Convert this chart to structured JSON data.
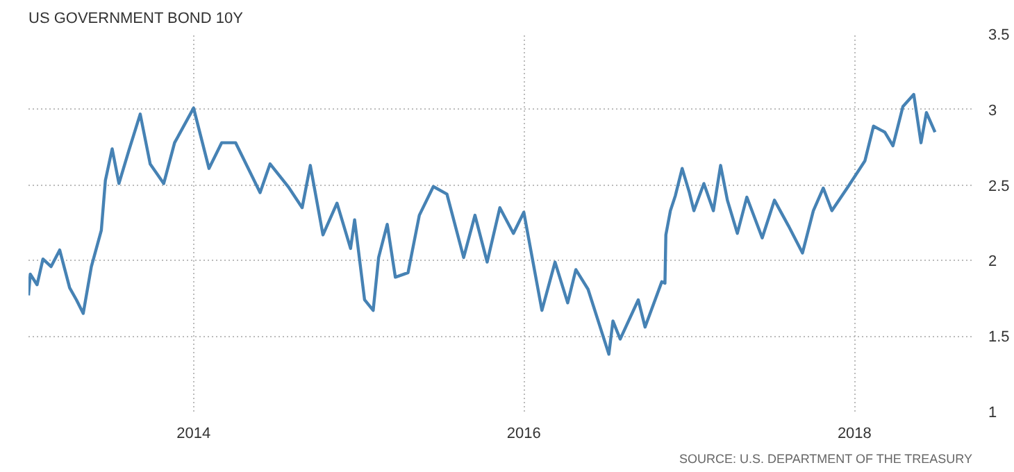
{
  "chart_data": {
    "type": "line",
    "title": "US GOVERNMENT BOND 10Y",
    "annotations": [
      "SOURCE: U.S. DEPARTMENT OF THE TREASURY"
    ],
    "x": [
      "2013-01-01",
      "2013-01-05",
      "2013-01-20",
      "2013-02-02",
      "2013-02-20",
      "2013-03-11",
      "2013-04-02",
      "2013-04-17",
      "2013-05-02",
      "2013-05-20",
      "2013-06-11",
      "2013-06-20",
      "2013-07-05",
      "2013-07-20",
      "2013-08-11",
      "2013-09-05",
      "2013-09-27",
      "2013-10-27",
      "2013-11-20",
      "2014-01-01",
      "2014-02-04",
      "2014-03-04",
      "2014-04-04",
      "2014-05-28",
      "2014-06-19",
      "2014-07-29",
      "2014-08-29",
      "2014-09-16",
      "2014-10-14",
      "2014-11-14",
      "2014-12-14",
      "2014-12-23",
      "2015-01-14",
      "2015-02-02",
      "2015-02-14",
      "2015-03-05",
      "2015-03-23",
      "2015-04-20",
      "2015-05-15",
      "2015-06-15",
      "2015-07-15",
      "2015-08-21",
      "2015-09-15",
      "2015-10-12",
      "2015-11-09",
      "2015-12-09",
      "2016-01-01",
      "2016-02-10",
      "2016-03-10",
      "2016-04-07",
      "2016-04-25",
      "2016-05-22",
      "2016-07-07",
      "2016-07-16",
      "2016-08-01",
      "2016-09-10",
      "2016-09-25",
      "2016-11-01",
      "2016-11-08",
      "2016-11-10",
      "2016-11-20",
      "2016-12-01",
      "2016-12-16",
      "2017-01-01",
      "2017-01-11",
      "2017-02-02",
      "2017-02-23",
      "2017-03-11",
      "2017-03-26",
      "2017-04-17",
      "2017-05-08",
      "2017-06-11",
      "2017-07-08",
      "2017-08-08",
      "2017-09-08",
      "2017-10-02",
      "2017-10-24",
      "2017-11-12",
      "2017-12-18",
      "2018-01-24",
      "2018-02-12",
      "2018-03-09",
      "2018-03-27",
      "2018-04-18",
      "2018-05-12",
      "2018-05-28",
      "2018-06-09",
      "2018-06-28"
    ],
    "series": [
      {
        "color": "#4682b4",
        "values": [
          1.77,
          1.91,
          1.84,
          2.01,
          1.96,
          2.07,
          1.82,
          1.74,
          1.65,
          1.96,
          2.2,
          2.53,
          2.74,
          2.51,
          2.73,
          2.97,
          2.64,
          2.51,
          2.78,
          3.01,
          2.61,
          2.78,
          2.78,
          2.45,
          2.64,
          2.49,
          2.35,
          2.63,
          2.17,
          2.38,
          2.08,
          2.27,
          1.74,
          1.67,
          2.02,
          2.24,
          1.89,
          1.92,
          2.3,
          2.49,
          2.44,
          2.02,
          2.3,
          1.99,
          2.35,
          2.18,
          2.32,
          1.67,
          1.99,
          1.72,
          1.94,
          1.81,
          1.38,
          1.6,
          1.48,
          1.74,
          1.56,
          1.86,
          1.85,
          2.17,
          2.33,
          2.43,
          2.61,
          2.45,
          2.33,
          2.51,
          2.33,
          2.63,
          2.4,
          2.18,
          2.42,
          2.15,
          2.4,
          2.23,
          2.05,
          2.33,
          2.48,
          2.33,
          2.49,
          2.66,
          2.89,
          2.85,
          2.76,
          3.02,
          3.1,
          2.78,
          2.98,
          2.85
        ]
      }
    ],
    "xlim": [
      "2013-01-01",
      "2018-09-20"
    ],
    "xticks": [
      {
        "value": "2014",
        "label": "2014"
      },
      {
        "value": "2016",
        "label": "2016"
      },
      {
        "value": "2018",
        "label": "2018"
      }
    ],
    "ylim": [
      1,
      3.5
    ],
    "yticks": [
      1,
      1.5,
      2,
      2.5,
      3,
      3.5
    ],
    "grid": true,
    "line_style": "solid"
  }
}
